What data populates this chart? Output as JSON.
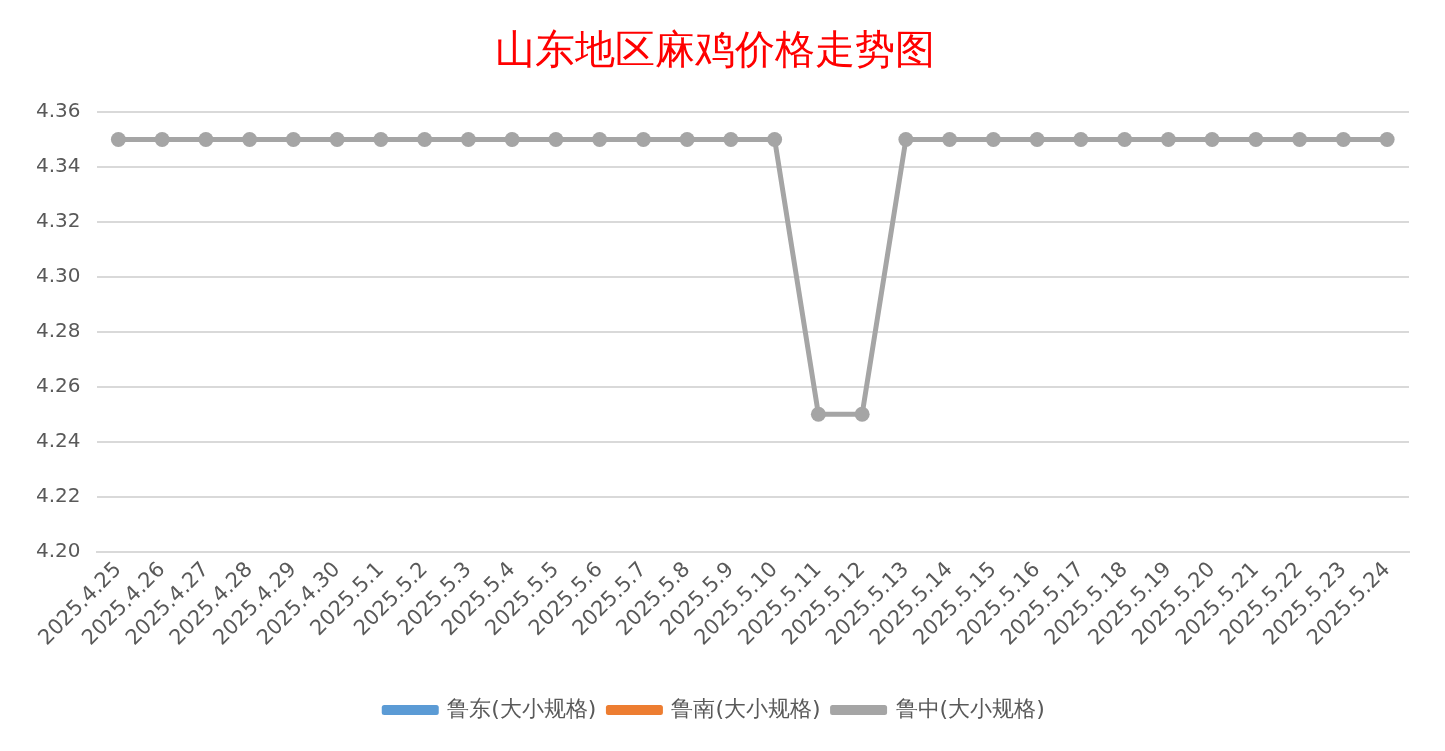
{
  "chart_data": {
    "type": "line",
    "title": "山东地区麻鸡价格走势图",
    "categories": [
      "2025.4.25",
      "2025.4.26",
      "2025.4.27",
      "2025.4.28",
      "2025.4.29",
      "2025.4.30",
      "2025.5.1",
      "2025.5.2",
      "2025.5.3",
      "2025.5.4",
      "2025.5.5",
      "2025.5.6",
      "2025.5.7",
      "2025.5.8",
      "2025.5.9",
      "2025.5.10",
      "2025.5.11",
      "2025.5.12",
      "2025.5.13",
      "2025.5.14",
      "2025.5.15",
      "2025.5.16",
      "2025.5.17",
      "2025.5.18",
      "2025.5.19",
      "2025.5.20",
      "2025.5.21",
      "2025.5.22",
      "2025.5.23",
      "2025.5.24"
    ],
    "series": [
      {
        "name": "鲁东(大小规格)",
        "color": "#5b9bd5",
        "values": [
          null,
          null,
          null,
          null,
          null,
          null,
          null,
          null,
          null,
          null,
          null,
          null,
          null,
          null,
          null,
          null,
          null,
          null,
          null,
          null,
          null,
          null,
          null,
          null,
          null,
          null,
          null,
          null,
          null,
          null
        ]
      },
      {
        "name": "鲁南(大小规格)",
        "color": "#ed7d31",
        "values": [
          null,
          null,
          null,
          null,
          null,
          null,
          null,
          null,
          null,
          null,
          null,
          null,
          null,
          null,
          null,
          null,
          null,
          null,
          null,
          null,
          null,
          null,
          null,
          null,
          null,
          null,
          null,
          null,
          null,
          null
        ]
      },
      {
        "name": "鲁中(大小规格)",
        "color": "#a5a5a5",
        "values": [
          4.35,
          4.35,
          4.35,
          4.35,
          4.35,
          4.35,
          4.35,
          4.35,
          4.35,
          4.35,
          4.35,
          4.35,
          4.35,
          4.35,
          4.35,
          4.35,
          4.25,
          4.25,
          4.35,
          4.35,
          4.35,
          4.35,
          4.35,
          4.35,
          4.35,
          4.35,
          4.35,
          4.35,
          4.35,
          4.35
        ]
      }
    ],
    "ylim": [
      4.2,
      4.36
    ],
    "yticks": [
      {
        "value": 4.2,
        "label": "4.20"
      },
      4.22,
      4.24,
      4.26,
      4.28,
      {
        "value": 4.3,
        "label": "4.30"
      },
      4.32,
      4.34,
      4.36
    ],
    "grid": "y",
    "legend": "bottom",
    "marker": "circle"
  }
}
